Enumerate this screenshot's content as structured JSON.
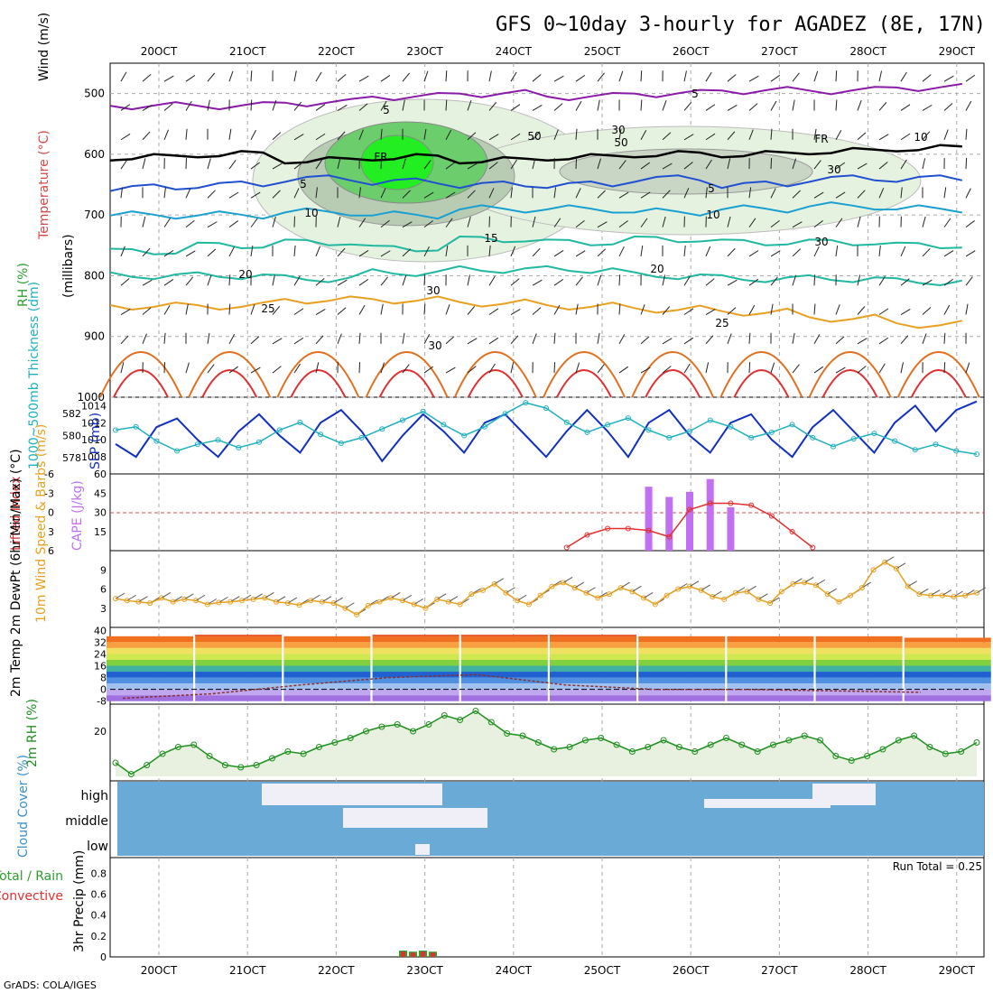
{
  "title": "GFS 0~10day 3-hourly for AGADEZ (8E, 17N)",
  "credit": "GrADS: COLA/IGES",
  "dates": [
    "20OCT",
    "21OCT",
    "22OCT",
    "23OCT",
    "24OCT",
    "25OCT",
    "26OCT",
    "27OCT",
    "28OCT",
    "29OCT"
  ],
  "colors": {
    "purple": "#8a1aa8",
    "blue_temp": "#2050d0",
    "cyan_temp": "#1aa0d0",
    "teal_temp": "#20b8a0",
    "orange_temp": "#e8a020",
    "red_temp": "#e03030",
    "slp": "#1030c0",
    "thick": "#20b0c0",
    "cape": "#c070f0",
    "li": "#e03030",
    "wind": "#e8a020",
    "rh_line": "#209020",
    "rh_fill": "#e8f0e0",
    "cloud_bg": "#6aaad6",
    "cloud_fill": "#f0eef6"
  },
  "chart_data": [
    {
      "panel": "upper-air",
      "type": "contour",
      "ylabels": {
        "rh": "RH (%)",
        "temp": "Temperature (°C)",
        "wind": "Wind (m/s)",
        "units": "(millibars)"
      },
      "yticks": [
        500,
        600,
        700,
        800,
        900,
        1000
      ],
      "ylim": [
        1000,
        450
      ],
      "contour_labels": [
        "5",
        "5",
        "FR",
        "FR",
        "5",
        "5",
        "10",
        "10",
        "15",
        "20",
        "20",
        "25",
        "25",
        "30",
        "50",
        "50",
        "30",
        "30",
        "30",
        "30",
        "10"
      ],
      "isotherms": [
        {
          "label": "5",
          "pressure": [
            520,
            520,
            515,
            505,
            500,
            505,
            500,
            495,
            495,
            490
          ]
        },
        {
          "label": "FR",
          "pressure": [
            605,
            600,
            610,
            605,
            610,
            605,
            600,
            600,
            595,
            590
          ]
        },
        {
          "label": "5",
          "pressure": [
            655,
            650,
            640,
            645,
            650,
            650,
            640,
            650,
            640,
            640
          ]
        },
        {
          "label": "10",
          "pressure": [
            700,
            700,
            695,
            700,
            690,
            690,
            695,
            690,
            685,
            690
          ]
        },
        {
          "label": "15",
          "pressure": [
            760,
            750,
            745,
            755,
            740,
            745,
            740,
            745,
            745,
            750
          ]
        },
        {
          "label": "20",
          "pressure": [
            800,
            800,
            805,
            795,
            790,
            790,
            800,
            805,
            805,
            810
          ]
        },
        {
          "label": "25",
          "pressure": [
            850,
            850,
            840,
            840,
            845,
            850,
            855,
            860,
            870,
            880
          ]
        }
      ]
    },
    {
      "panel": "slp-thickness",
      "type": "line",
      "ylabel_left": "1000~500mb Thickness (dm)",
      "ylabel_right": "SLP (mb)",
      "yticks_left": [
        578,
        580,
        582
      ],
      "yticks_right": [
        1008,
        1010,
        1012,
        1014
      ],
      "series": [
        {
          "name": "SLP",
          "values": [
            1009.5,
            1008,
            1011.5,
            1012.5,
            1010,
            1008,
            1011,
            1013,
            1010.5,
            1008.5,
            1012,
            1013.5,
            1011,
            1007.5,
            1010.5,
            1013,
            1011,
            1008.5,
            1012,
            1013,
            1010.5,
            1008,
            1011,
            1013.5,
            1011,
            1008,
            1012,
            1013.5,
            1010.5,
            1008.5,
            1012,
            1013,
            1010,
            1008,
            1011.5,
            1013.5,
            1011,
            1008.5,
            1012,
            1014,
            1011,
            1013.5,
            1014.5
          ]
        },
        {
          "name": "Thickness",
          "values": [
            580.5,
            580.8,
            579.5,
            578.6,
            579.2,
            579.6,
            578.9,
            579.4,
            580.5,
            581.2,
            580.1,
            579.3,
            579.8,
            580.6,
            581.4,
            582.2,
            581.0,
            580.0,
            580.8,
            582.0,
            583.0,
            582.5,
            581.2,
            580.3,
            581.0,
            581.6,
            580.5,
            579.8,
            580.4,
            581.4,
            580.8,
            579.8,
            580.3,
            581.0,
            579.8,
            579.0,
            579.7,
            580.2,
            579.5,
            578.7,
            579.2,
            578.6,
            578.3
          ]
        }
      ]
    },
    {
      "panel": "cape-li",
      "type": "bar",
      "ylabel_left": "Lifted Index",
      "ylabel_right": "CAPE (J/kg)",
      "yticks_left": [
        "6",
        "3",
        "0",
        "-3",
        "-6"
      ],
      "yticks_right": [
        15,
        30,
        45,
        60
      ],
      "cape_bars": [
        0,
        0,
        0,
        0,
        0,
        0,
        0,
        0,
        0,
        0,
        0,
        0,
        0,
        0,
        0,
        0,
        0,
        0,
        0,
        0,
        0,
        0,
        0,
        0,
        0,
        0,
        50,
        42,
        46,
        56,
        34,
        0,
        0,
        0,
        0,
        0,
        0,
        0,
        0,
        0,
        0,
        0,
        0
      ],
      "lifted_index": [
        null,
        null,
        null,
        null,
        null,
        null,
        null,
        null,
        null,
        null,
        null,
        null,
        null,
        null,
        null,
        null,
        null,
        null,
        null,
        null,
        null,
        null,
        5.5,
        3.5,
        2.5,
        2.5,
        2.8,
        3.8,
        -0.5,
        -1.5,
        -1.5,
        -1.2,
        0.5,
        3.0,
        5.5,
        null,
        null,
        null,
        null,
        null,
        null,
        null,
        null
      ]
    },
    {
      "panel": "10m-wind",
      "type": "line",
      "ylabel": "10m Wind Speed & Barbs (m/s)",
      "yticks": [
        3,
        6,
        9
      ],
      "values": [
        4.5,
        4.2,
        4.0,
        3.8,
        4.6,
        4.0,
        4.4,
        4.2,
        3.6,
        3.9,
        4.0,
        4.2,
        4.4,
        4.6,
        4.0,
        3.8,
        3.5,
        4.2,
        4.0,
        3.8,
        3.0,
        2.0,
        3.4,
        4.0,
        4.6,
        4.2,
        3.6,
        3.0,
        4.4,
        4.0,
        3.6,
        5.2,
        5.8,
        6.8,
        5.4,
        4.2,
        3.6,
        5.0,
        6.4,
        7.0,
        6.2,
        5.4,
        4.6,
        5.2,
        6.2,
        5.6,
        4.6,
        3.6,
        5.0,
        6.0,
        6.4,
        5.8,
        4.8,
        4.4,
        5.4,
        5.6,
        4.4,
        3.8,
        5.6,
        6.8,
        7.0,
        6.6,
        5.2,
        4.0,
        5.0,
        6.2,
        9.0,
        10.2,
        9.2,
        6.4,
        5.2,
        5.0,
        5.0,
        4.8,
        5.0,
        5.4
      ]
    },
    {
      "panel": "2m-temp",
      "type": "area",
      "ylabel": "2m Temp 2m DewPt (6hr Min/Max) (°C)",
      "yticks": [
        40,
        32,
        24,
        16,
        8,
        0,
        -8
      ],
      "temp_max": [
        36,
        37,
        36,
        37,
        37,
        37,
        36,
        36,
        36,
        35
      ],
      "temp_min": [
        26,
        26,
        26,
        26,
        26,
        26,
        26,
        26,
        26,
        26
      ],
      "dewpt": [
        -6,
        -3,
        3,
        8,
        10,
        3,
        0,
        0,
        -1,
        -2
      ]
    },
    {
      "panel": "2m-rh",
      "type": "line",
      "ylabel": "2m RH (%)",
      "yticks": [
        20
      ],
      "values": [
        6,
        1,
        5,
        10,
        13,
        14,
        9,
        5,
        4,
        5,
        8,
        11,
        10,
        13,
        15,
        17,
        20,
        22,
        23,
        20,
        23,
        27,
        25,
        29,
        24,
        19,
        18,
        15,
        12,
        13,
        16,
        17,
        14,
        11,
        13,
        16,
        13,
        11,
        14,
        17,
        14,
        11,
        14,
        16,
        18,
        16,
        9,
        7,
        9,
        12,
        16,
        18,
        13,
        10,
        11,
        15
      ]
    },
    {
      "panel": "cloud-cover",
      "type": "area",
      "ylabel": "Cloud Cover (%)",
      "levels": [
        "high",
        "middle",
        "low"
      ]
    },
    {
      "panel": "precip",
      "type": "bar",
      "ylabel_left": "Total / Rain Convective",
      "ylabel_right": "3hr Precip (mm)",
      "yticks": [
        "0",
        "0.2",
        "0.4",
        "0.6",
        "0.8"
      ],
      "run_total": "Run Total = 0.25",
      "bars": [
        0.06,
        0.05,
        0.06,
        0.05
      ]
    }
  ]
}
